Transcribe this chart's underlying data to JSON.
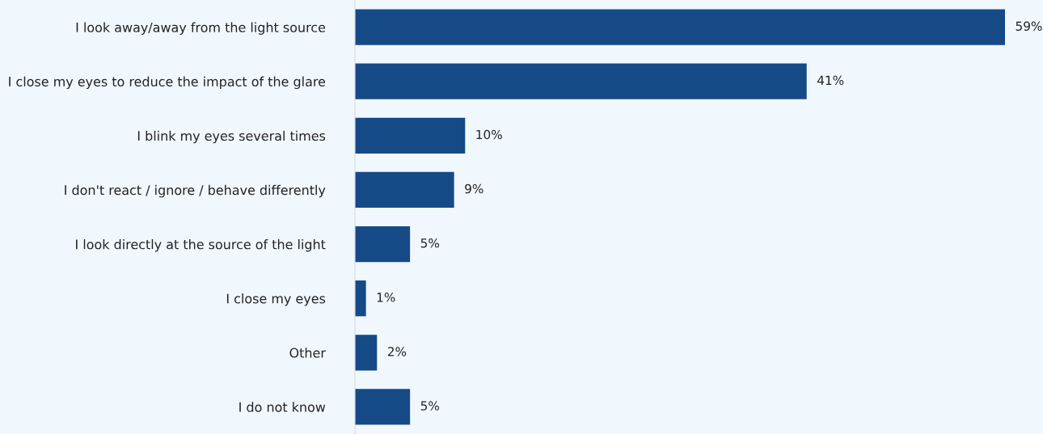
{
  "chart_data": {
    "type": "bar",
    "orientation": "horizontal",
    "categories": [
      "I look away/away from the light source",
      "I close my eyes to reduce the impact of the glare",
      "I blink my eyes several times",
      "I don't react / ignore / behave differently",
      "I look directly at the source of the light",
      "I close my eyes",
      "Other",
      "I do not know"
    ],
    "values": [
      59,
      41,
      10,
      9,
      5,
      1,
      2,
      5
    ],
    "value_labels": [
      "59%",
      "41%",
      "10%",
      "9%",
      "5%",
      "1%",
      "2%",
      "5%"
    ],
    "color": "#154a87",
    "grid": false,
    "legend": false
  }
}
